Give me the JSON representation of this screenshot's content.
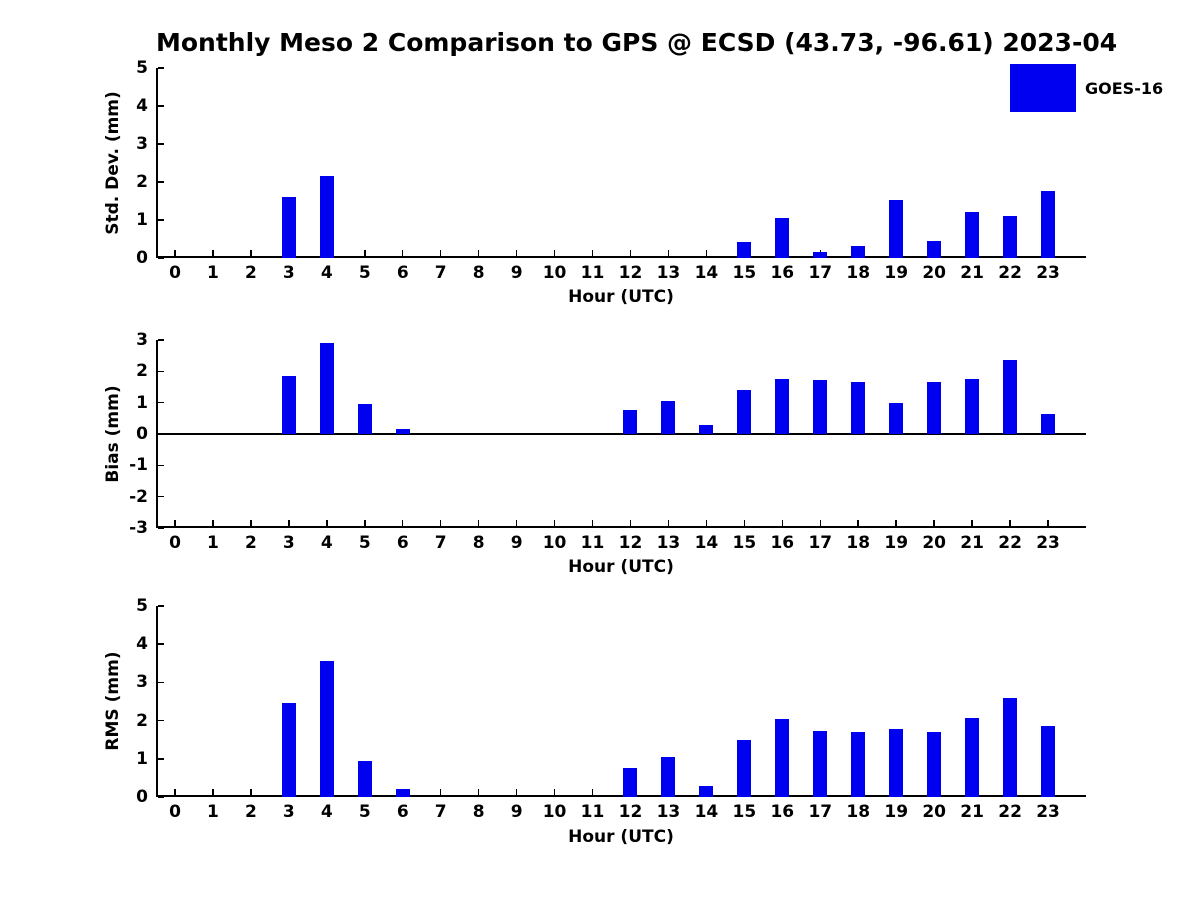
{
  "title": "Monthly Meso 2 Comparison to GPS @ ECSD (43.73, -96.61) 2023-04",
  "legend": {
    "label": "GOES-16",
    "position": "upper right"
  },
  "bar_color": "#0000F0",
  "hours": [
    "0",
    "1",
    "2",
    "3",
    "4",
    "5",
    "6",
    "7",
    "8",
    "9",
    "10",
    "11",
    "12",
    "13",
    "14",
    "15",
    "16",
    "17",
    "18",
    "19",
    "20",
    "21",
    "22",
    "23"
  ],
  "chart_data": [
    {
      "type": "bar",
      "ylabel": "Std. Dev. (mm)",
      "xlabel": "Hour (UTC)",
      "ylim": [
        0,
        5
      ],
      "yticks": [
        0,
        1,
        2,
        3,
        4,
        5
      ],
      "grid": false,
      "categories": [
        "0",
        "1",
        "2",
        "3",
        "4",
        "5",
        "6",
        "7",
        "8",
        "9",
        "10",
        "11",
        "12",
        "13",
        "14",
        "15",
        "16",
        "17",
        "18",
        "19",
        "20",
        "21",
        "22",
        "23"
      ],
      "values": [
        0,
        0,
        0,
        1.61,
        2.15,
        0,
        0,
        0,
        0,
        0,
        0,
        0,
        0,
        0,
        0,
        0.43,
        1.06,
        0.15,
        0.31,
        1.53,
        0.46,
        1.22,
        1.11,
        1.76
      ]
    },
    {
      "type": "bar",
      "ylabel": "Bias (mm)",
      "xlabel": "Hour (UTC)",
      "ylim": [
        -3,
        3
      ],
      "yticks": [
        -3,
        -2,
        -1,
        0,
        1,
        2,
        3
      ],
      "grid": false,
      "zero_line": true,
      "categories": [
        "0",
        "1",
        "2",
        "3",
        "4",
        "5",
        "6",
        "7",
        "8",
        "9",
        "10",
        "11",
        "12",
        "13",
        "14",
        "15",
        "16",
        "17",
        "18",
        "19",
        "20",
        "21",
        "22",
        "23"
      ],
      "values": [
        0,
        0,
        0,
        1.85,
        2.9,
        0.95,
        0.17,
        0,
        0,
        0,
        0,
        0,
        0.78,
        1.04,
        0.29,
        1.42,
        1.77,
        1.73,
        1.67,
        0.98,
        1.65,
        1.74,
        2.36,
        0.64
      ]
    },
    {
      "type": "bar",
      "ylabel": "RMS (mm)",
      "xlabel": "Hour (UTC)",
      "ylim": [
        0,
        5
      ],
      "yticks": [
        0,
        1,
        2,
        3,
        4,
        5
      ],
      "grid": false,
      "categories": [
        "0",
        "1",
        "2",
        "3",
        "4",
        "5",
        "6",
        "7",
        "8",
        "9",
        "10",
        "11",
        "12",
        "13",
        "14",
        "15",
        "16",
        "17",
        "18",
        "19",
        "20",
        "21",
        "22",
        "23"
      ],
      "values": [
        0,
        0,
        0,
        2.47,
        3.56,
        0.94,
        0.2,
        0,
        0,
        0,
        0,
        0,
        0.76,
        1.04,
        0.3,
        1.48,
        2.05,
        1.74,
        1.71,
        1.78,
        1.69,
        2.08,
        2.58,
        1.85
      ]
    }
  ]
}
